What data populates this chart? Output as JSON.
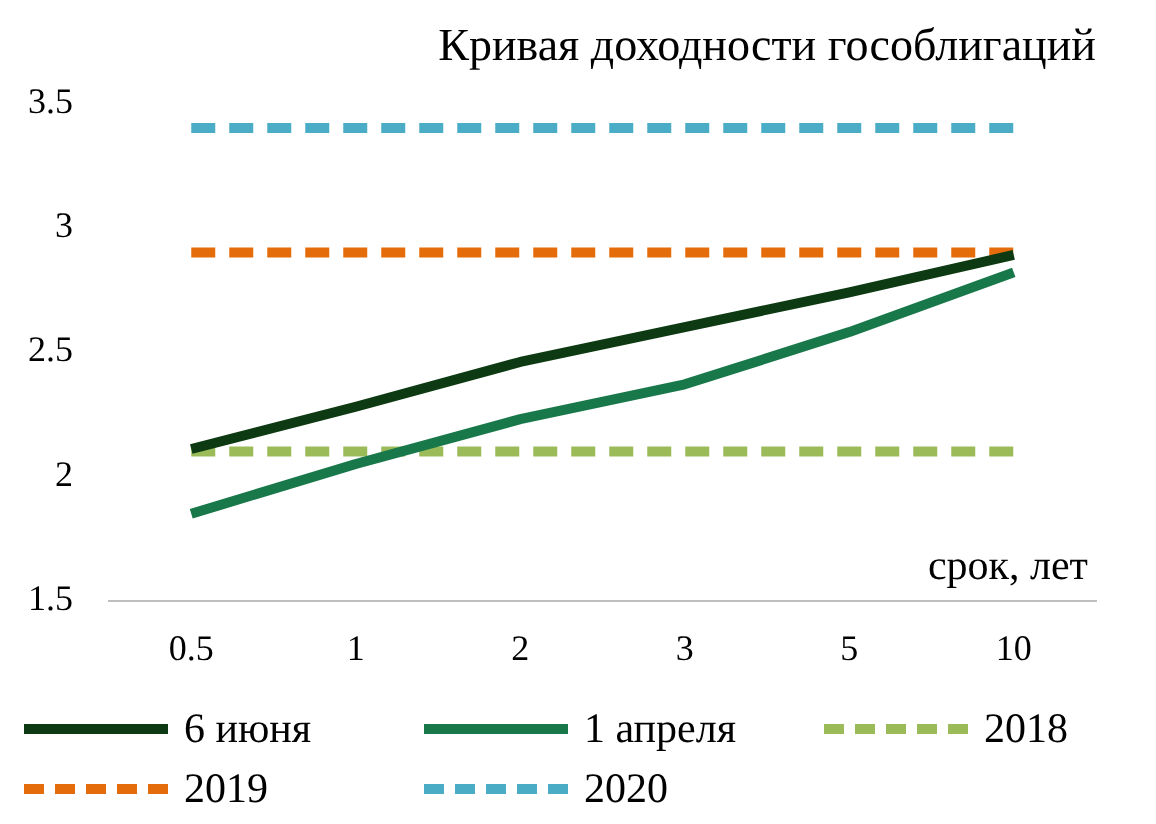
{
  "chart_data": {
    "type": "line",
    "title": "Кривая доходности гособлигаций",
    "xlabel": "срок, лет",
    "categories": [
      "0.5",
      "1",
      "2",
      "3",
      "5",
      "10"
    ],
    "ylim": [
      1.5,
      3.5
    ],
    "yticks": [
      1.5,
      2,
      2.5,
      3,
      3.5
    ],
    "grid": false,
    "legend": "bottom",
    "marker": "none",
    "series": [
      {
        "name": "6 июня",
        "color": "#0d3a12",
        "line_style": "solid",
        "values": [
          2.11,
          2.28,
          2.46,
          2.6,
          2.74,
          2.89
        ]
      },
      {
        "name": "1 апреля",
        "color": "#18784a",
        "line_style": "solid",
        "values": [
          1.85,
          2.05,
          2.23,
          2.37,
          2.58,
          2.82
        ]
      },
      {
        "name": "2018",
        "color": "#9bbb59",
        "line_style": "dashed",
        "values": [
          2.1,
          2.1,
          2.1,
          2.1,
          2.1,
          2.1
        ]
      },
      {
        "name": "2019",
        "color": "#e46c0a",
        "line_style": "dashed",
        "values": [
          2.9,
          2.9,
          2.9,
          2.9,
          2.9,
          2.9
        ]
      },
      {
        "name": "2020",
        "color": "#4bacc6",
        "line_style": "dashed",
        "values": [
          3.4,
          3.4,
          3.4,
          3.4,
          3.4,
          3.4
        ]
      }
    ]
  }
}
